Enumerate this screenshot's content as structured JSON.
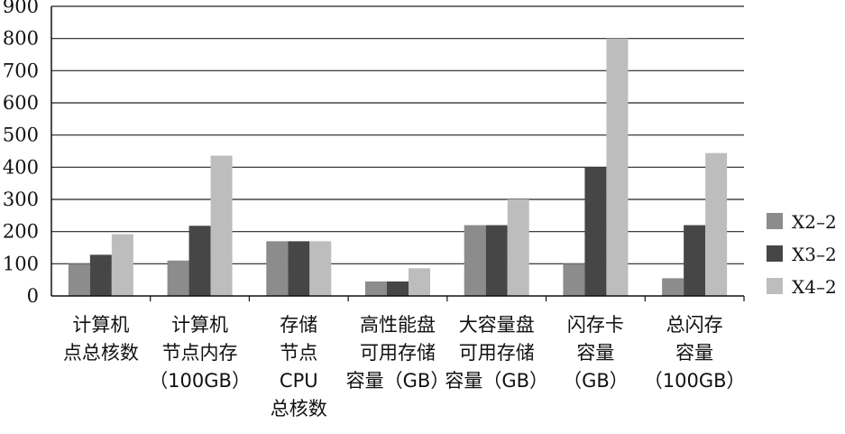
{
  "chart_data": {
    "type": "bar",
    "title": "",
    "xlabel": "",
    "ylabel": "",
    "ylim": [
      0,
      900
    ],
    "yticks": [
      0,
      100,
      200,
      300,
      400,
      500,
      600,
      700,
      800,
      900
    ],
    "grid": true,
    "legend_position": "right",
    "categories": [
      [
        "计算机",
        "点总核数"
      ],
      [
        "计算机",
        "节点内存",
        "（100GB）"
      ],
      [
        "存储",
        "节点",
        "CPU",
        "总核数"
      ],
      [
        "高性能盘",
        "可用存储",
        "容量（GB）"
      ],
      [
        "大容量盘",
        "可用存储",
        "容量（GB）"
      ],
      [
        "闪存卡",
        "容量",
        "（GB）"
      ],
      [
        "总闪存",
        "容量",
        "（100GB）"
      ]
    ],
    "series": [
      {
        "name": "X2–2",
        "color": "#8c8c8c",
        "values": [
          100,
          110,
          170,
          45,
          220,
          100,
          55
        ]
      },
      {
        "name": "X3–2",
        "color": "#464646",
        "values": [
          128,
          218,
          170,
          45,
          220,
          400,
          220
        ]
      },
      {
        "name": "X4–2",
        "color": "#bdbdbd",
        "values": [
          192,
          436,
          170,
          86,
          300,
          800,
          444
        ]
      }
    ]
  }
}
